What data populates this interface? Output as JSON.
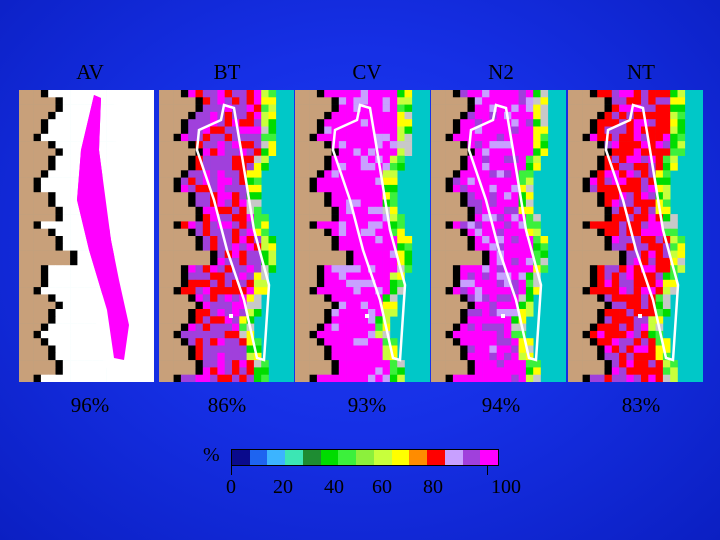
{
  "columns": [
    {
      "title": "AV",
      "percent": "96%"
    },
    {
      "title": "BT",
      "percent": "86%"
    },
    {
      "title": "CV",
      "percent": "93%"
    },
    {
      "title": "N2",
      "percent": "94%"
    },
    {
      "title": "NT",
      "percent": "83%"
    }
  ],
  "legend": {
    "symbol": "%",
    "ticks": [
      "0",
      "20",
      "40",
      "60",
      "80",
      "100"
    ],
    "colors": [
      "#0a0a8c",
      "#1e64f0",
      "#3cb4ff",
      "#3ce6b4",
      "#1e8c32",
      "#00dc00",
      "#3cf03c",
      "#8cf03c",
      "#c8ff3c",
      "#ffff00",
      "#ff8c00",
      "#ff0000",
      "#c8a0ff",
      "#a040dc",
      "#ff00ff"
    ]
  },
  "colors": {
    "land": "#c8a07a",
    "sea": "#00c8c8",
    "coast": "#000000",
    "outline": "#ffffff",
    "magenta": "#ff00ff",
    "purple": "#a040dc"
  }
}
